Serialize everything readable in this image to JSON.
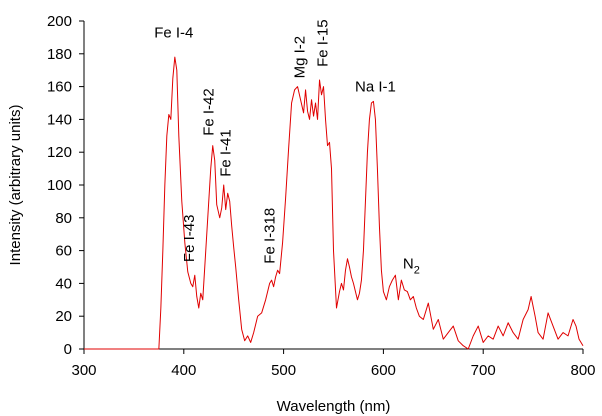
{
  "chart_data": {
    "type": "line",
    "xlabel": "Wavelength (nm)",
    "ylabel": "Intensity (arbitrary units)",
    "xlim": [
      300,
      800
    ],
    "ylim": [
      0,
      200
    ],
    "xticks": [
      300,
      400,
      500,
      600,
      700,
      800
    ],
    "yticks": [
      0,
      20,
      40,
      60,
      80,
      100,
      120,
      140,
      160,
      180,
      200
    ],
    "grid": false,
    "legend": "none",
    "series": [
      {
        "color": "#e00000",
        "x": [
          300,
          375,
          377,
          379,
          381,
          383,
          385,
          387,
          389,
          391,
          393,
          395,
          398,
          401,
          404,
          407,
          409,
          411,
          413,
          415,
          417,
          419,
          422,
          425,
          427,
          429,
          431,
          433,
          436,
          438,
          440,
          442,
          444,
          446,
          448,
          450,
          452,
          455,
          458,
          461,
          464,
          467,
          470,
          474,
          478,
          482,
          486,
          488,
          490,
          492,
          494,
          496,
          499,
          502,
          505,
          508,
          511,
          514,
          517,
          520,
          522,
          524,
          526,
          528,
          530,
          532,
          534,
          536,
          538,
          540,
          542,
          544,
          546,
          548,
          550,
          553,
          556,
          558,
          560,
          562,
          564,
          566,
          568,
          570,
          572,
          574,
          576,
          578,
          580,
          582,
          584,
          586,
          588,
          590,
          592,
          594,
          596,
          598,
          600,
          603,
          606,
          609,
          612,
          615,
          618,
          621,
          624,
          627,
          630,
          633,
          636,
          640,
          645,
          650,
          655,
          660,
          665,
          670,
          675,
          680,
          685,
          690,
          695,
          700,
          705,
          710,
          715,
          720,
          725,
          730,
          735,
          740,
          745,
          748,
          752,
          755,
          760,
          765,
          770,
          775,
          780,
          785,
          790,
          793,
          796,
          800
        ],
        "y": [
          0,
          0,
          25,
          60,
          100,
          130,
          143,
          140,
          165,
          178,
          170,
          130,
          90,
          65,
          47,
          40,
          38,
          45,
          32,
          25,
          34,
          30,
          60,
          90,
          110,
          124,
          115,
          88,
          80,
          86,
          100,
          85,
          95,
          90,
          75,
          62,
          50,
          30,
          12,
          5,
          8,
          4,
          10,
          20,
          22,
          30,
          40,
          42,
          38,
          44,
          48,
          46,
          65,
          92,
          122,
          150,
          158,
          160,
          152,
          144,
          158,
          145,
          140,
          152,
          142,
          150,
          140,
          164,
          155,
          160,
          140,
          124,
          126,
          110,
          60,
          25,
          35,
          40,
          36,
          48,
          55,
          50,
          44,
          40,
          35,
          30,
          34,
          42,
          60,
          90,
          120,
          140,
          150,
          151,
          140,
          110,
          75,
          48,
          35,
          30,
          38,
          42,
          45,
          30,
          42,
          36,
          35,
          30,
          32,
          25,
          20,
          18,
          28,
          12,
          18,
          6,
          10,
          14,
          5,
          2,
          0,
          8,
          14,
          4,
          8,
          6,
          14,
          8,
          16,
          10,
          6,
          18,
          24,
          32,
          20,
          10,
          6,
          22,
          14,
          6,
          10,
          8,
          18,
          14,
          6,
          2
        ]
      }
    ],
    "annotations": [
      {
        "text": "Fe I-4",
        "x": 390,
        "y": 190,
        "rotate": false
      },
      {
        "text": "Fe I-43",
        "x": 410,
        "y": 53,
        "rotate": true
      },
      {
        "text": "Fe I-42",
        "x": 430,
        "y": 130,
        "rotate": true
      },
      {
        "text": "Fe I-41",
        "x": 447,
        "y": 105,
        "rotate": true
      },
      {
        "text": "Fe I-318",
        "x": 491,
        "y": 52,
        "rotate": true
      },
      {
        "text": "Mg I-2",
        "x": 521,
        "y": 165,
        "rotate": true
      },
      {
        "text": "Fe I-15",
        "x": 544,
        "y": 172,
        "rotate": true
      },
      {
        "text": "Na I-1",
        "x": 592,
        "y": 157,
        "rotate": false
      },
      {
        "text": "N",
        "sub": "2",
        "x": 628,
        "y": 49,
        "rotate": false
      }
    ]
  }
}
